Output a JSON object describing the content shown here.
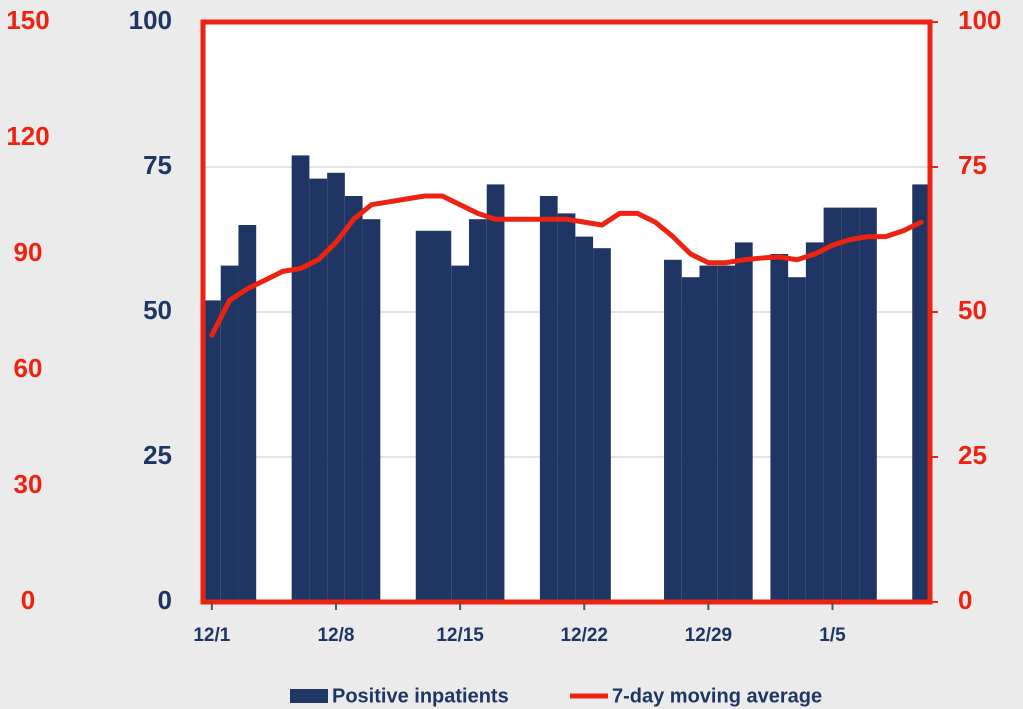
{
  "chart_data": {
    "type": "bar",
    "categories": [
      "12/1",
      null,
      null,
      null,
      null,
      null,
      null,
      "12/8",
      null,
      null,
      null,
      null,
      null,
      null,
      "12/15",
      null,
      null,
      null,
      null,
      null,
      null,
      "12/22",
      null,
      null,
      null,
      null,
      null,
      null,
      "12/29",
      null,
      null,
      null,
      null,
      null,
      null,
      "1/5",
      null,
      null,
      null,
      null,
      null
    ],
    "series": [
      {
        "name": "Positive inpatients",
        "type": "bar",
        "color": "#1f3564",
        "values": [
          52,
          58,
          65,
          null,
          null,
          77,
          73,
          74,
          70,
          66,
          null,
          null,
          64,
          64,
          58,
          66,
          72,
          null,
          null,
          70,
          67,
          63,
          61,
          null,
          null,
          null,
          59,
          56,
          58,
          58,
          62,
          null,
          60,
          56,
          62,
          68,
          68,
          68,
          null,
          null,
          72
        ]
      },
      {
        "name": "7-day moving average",
        "type": "line",
        "axis": "y2",
        "color": "#ee2211",
        "values": [
          46,
          52,
          54,
          55.5,
          57,
          57.5,
          59,
          62,
          66,
          68.5,
          69,
          69.5,
          70,
          70,
          68.5,
          67,
          66,
          66,
          66,
          66,
          66,
          65.5,
          65,
          67,
          67,
          65.5,
          63,
          60,
          58.5,
          58.5,
          59,
          59.3,
          59.5,
          59,
          60,
          61.5,
          62.5,
          63,
          63,
          64,
          65.5
        ]
      }
    ],
    "ylim": [
      0,
      100
    ],
    "yticks": [
      0,
      25,
      50,
      75,
      100
    ],
    "ycolor": "#1f3564",
    "y2lim": [
      0,
      100
    ],
    "y2ticks": [
      0,
      25,
      50,
      75,
      100
    ],
    "y2color": "#ee2211",
    "y3lim": [
      0,
      150
    ],
    "y3ticks": [
      0,
      30,
      60,
      90,
      120,
      150
    ],
    "y3color": "#ee2211",
    "grid": true,
    "legend": "bottom"
  }
}
